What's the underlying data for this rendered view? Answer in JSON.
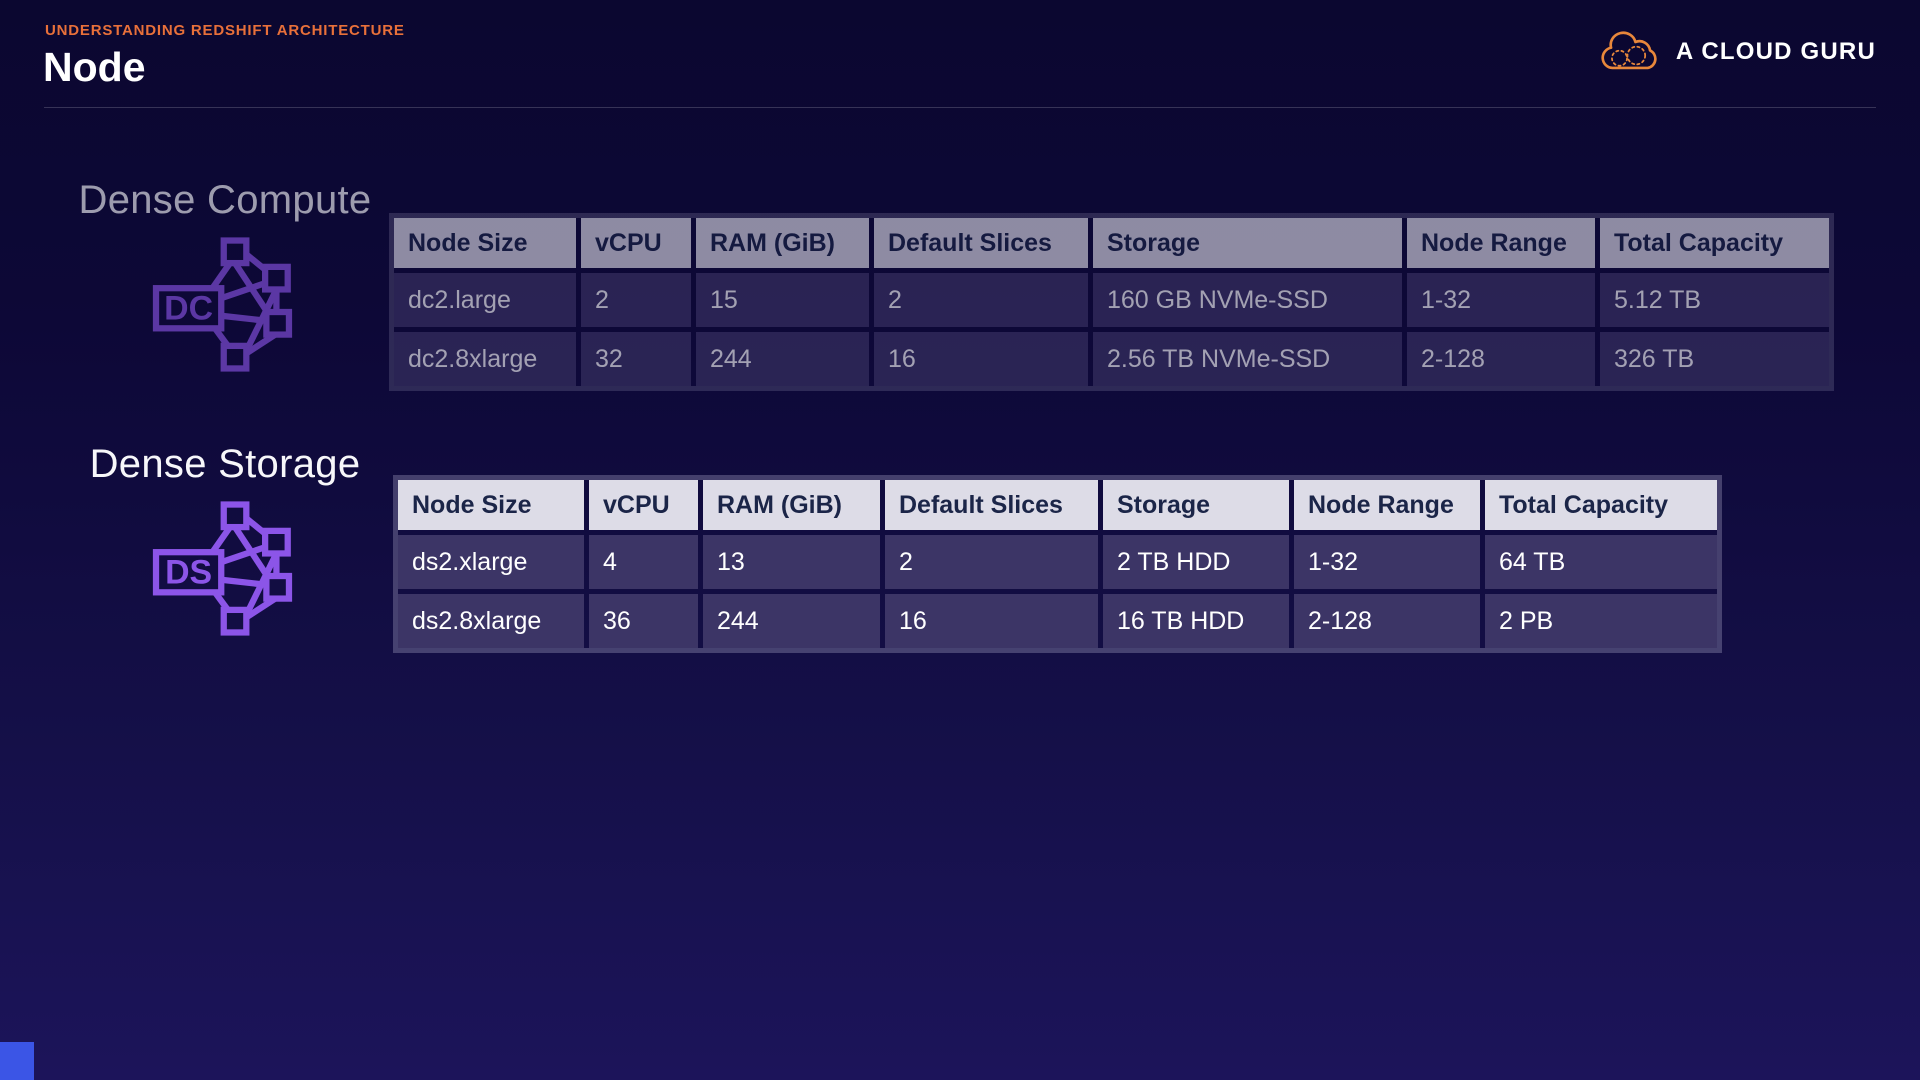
{
  "page": {
    "eyebrow": "UNDERSTANDING REDSHIFT ARCHITECTURE",
    "title": "Node"
  },
  "brand": {
    "name": "A CLOUD GURU"
  },
  "colors": {
    "accent_orange": "#e8703a",
    "brand_cloud_orange": "#e8873b",
    "purple_icon_bright": "#8c55e8",
    "table_header_bg": "#dddce7",
    "table_header_text": "#1b2548",
    "table_row_bg": "#3c3566",
    "background_top": "#0b0730",
    "background_bottom": "#1c145a",
    "corner_accent_blue": "#3b55e6"
  },
  "sections": [
    {
      "title": "Dense Compute",
      "icon_label": "DC",
      "dimmed": true,
      "table": {
        "headers": [
          "Node Size",
          "vCPU",
          "RAM (GiB)",
          "Default Slices",
          "Storage",
          "Node Range",
          "Total Capacity"
        ],
        "rows": [
          [
            "dc2.large",
            "2",
            "15",
            "2",
            "160 GB NVMe-SSD",
            "1-32",
            "5.12 TB"
          ],
          [
            "dc2.8xlarge",
            "32",
            "244",
            "16",
            "2.56 TB NVMe-SSD",
            "2-128",
            "326 TB"
          ]
        ]
      }
    },
    {
      "title": "Dense Storage",
      "icon_label": "DS",
      "dimmed": false,
      "table": {
        "headers": [
          "Node Size",
          "vCPU",
          "RAM (GiB)",
          "Default Slices",
          "Storage",
          "Node Range",
          "Total Capacity"
        ],
        "rows": [
          [
            "ds2.xlarge",
            "4",
            "13",
            "2",
            "2 TB HDD",
            "1-32",
            "64 TB"
          ],
          [
            "ds2.8xlarge",
            "36",
            "244",
            "16",
            "16 TB HDD",
            "2-128",
            "2 PB"
          ]
        ]
      }
    }
  ]
}
